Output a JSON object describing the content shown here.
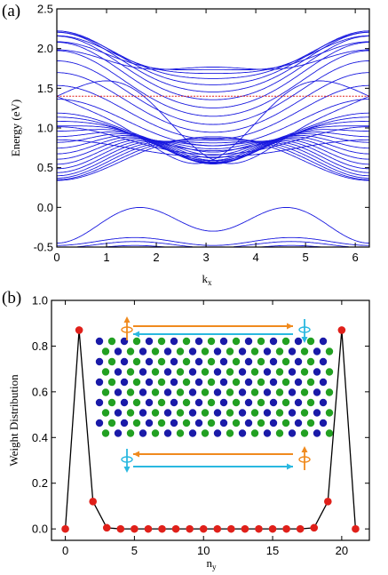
{
  "chart_data": [
    {
      "panel_label": "(a)",
      "type": "line",
      "ylabel": "Energy (eV)",
      "xlabel": "k_x",
      "xlabel_main": "k",
      "xlabel_sub": "x",
      "xlim": [
        0,
        6.2832
      ],
      "ylim": [
        -0.5,
        2.5
      ],
      "xticks": [
        0,
        1,
        2,
        3,
        4,
        5,
        6
      ],
      "xtick_labels": [
        "0",
        "1",
        "2",
        "3",
        "4",
        "5",
        "6"
      ],
      "yticks": [
        -0.5,
        0.0,
        0.5,
        1.0,
        1.5,
        2.0,
        2.5
      ],
      "ytick_labels": [
        "-0.5",
        "0.0",
        "0.5",
        "1.0",
        "1.5",
        "2.0",
        "2.5"
      ],
      "fermi_level": 1.4,
      "band_color": "#1a1adf",
      "fermi_color": "#e0201a",
      "bands_estimated": {
        "edge_state_crossing": {
          "x": [
            0,
            1.0,
            2.0,
            3.1416,
            4.28,
            5.28,
            6.2832
          ],
          "y": [
            1.4,
            1.68,
            1.68,
            0.62,
            1.68,
            1.68,
            1.4
          ]
        },
        "lowest_band_top": {
          "x": [
            0,
            1.0,
            2.0,
            3.1416,
            4.28,
            5.28,
            6.2832
          ],
          "y": [
            -0.55,
            -0.08,
            -0.5,
            -0.55,
            -0.5,
            -0.08,
            -0.55
          ]
        }
      }
    },
    {
      "panel_label": "(b)",
      "type": "line",
      "ylabel": "Weight Distribution",
      "xlabel": "n_y",
      "xlabel_main": "n",
      "xlabel_sub": "y",
      "xlim": [
        -1,
        22
      ],
      "ylim": [
        -0.05,
        1.0
      ],
      "xticks": [
        0,
        5,
        10,
        15,
        20
      ],
      "xtick_labels": [
        "0",
        "5",
        "10",
        "15",
        "20"
      ],
      "yticks": [
        0.0,
        0.2,
        0.4,
        0.6,
        0.8,
        1.0
      ],
      "ytick_labels": [
        "0.0",
        "0.2",
        "0.4",
        "0.6",
        "0.8",
        "1.0"
      ],
      "x": [
        0,
        1,
        2,
        3,
        4,
        5,
        6,
        7,
        8,
        9,
        10,
        11,
        12,
        13,
        14,
        15,
        16,
        17,
        18,
        19,
        20,
        21
      ],
      "values": [
        0.0,
        0.87,
        0.12,
        0.005,
        0.0,
        0.0,
        0.0,
        0.0,
        0.0,
        0.0,
        0.0,
        0.0,
        0.0,
        0.0,
        0.0,
        0.0,
        0.0,
        0.0,
        0.005,
        0.12,
        0.87,
        0.0
      ],
      "marker_color": "#e0201a",
      "line_color": "#000000",
      "inset": {
        "atom_colors": [
          "#1a1aa8",
          "#22a022"
        ],
        "arrow_colors": [
          "#f08a1e",
          "#2ab8e0"
        ]
      }
    }
  ]
}
